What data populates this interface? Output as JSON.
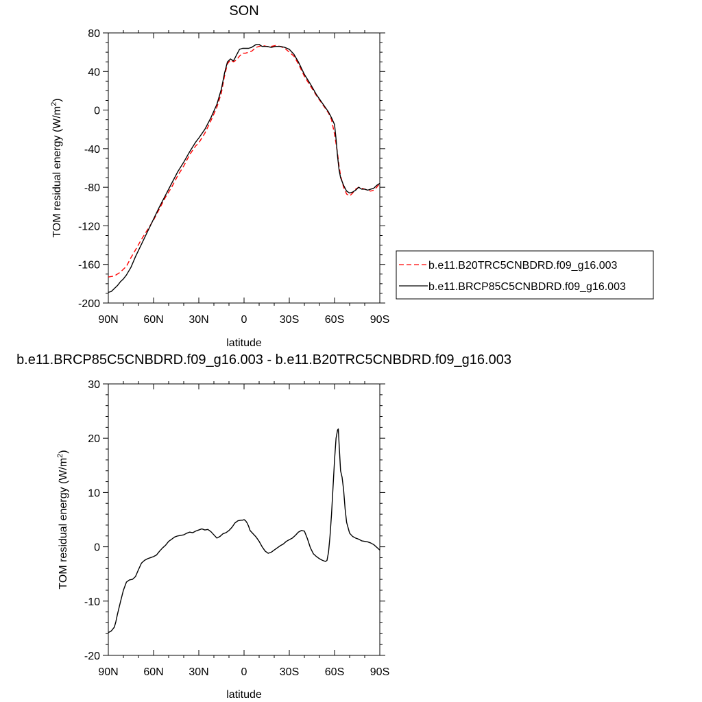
{
  "chart_data": [
    {
      "type": "line",
      "title": "SON",
      "xlabel": "latitude",
      "ylabel": "TOM residual energy (W/m",
      "ylabel_superscript": "2",
      "ylabel_suffix": ")",
      "xlim": [
        90,
        -90
      ],
      "ylim": [
        -200,
        80
      ],
      "x_ticks": [
        90,
        60,
        30,
        0,
        -30,
        -60,
        -90
      ],
      "x_tick_labels": [
        "90N",
        "60N",
        "30N",
        "0",
        "30S",
        "60S",
        "90S"
      ],
      "y_ticks": [
        80,
        40,
        0,
        -40,
        -80,
        -120,
        -160,
        -200
      ],
      "y_tick_labels": [
        "80",
        "40",
        "0",
        "-40",
        "-80",
        "-120",
        "-160",
        "-200"
      ],
      "grid": false,
      "legend_position": "right",
      "series": [
        {
          "name": "b.e11.B20TRC5CNBDRD.f09_g16.003",
          "color": "#ff0000",
          "dash": "dashed",
          "x": [
            90,
            86,
            82,
            78,
            75,
            72,
            68,
            64,
            60,
            56,
            52,
            48,
            44,
            40,
            36,
            32,
            30,
            26,
            22,
            18,
            15,
            13,
            11,
            9,
            7,
            5,
            3,
            1,
            -1,
            -3,
            -5,
            -8,
            -10,
            -12,
            -15,
            -18,
            -21,
            -24,
            -27,
            -30,
            -33,
            -36,
            -40,
            -44,
            -48,
            -52,
            -56,
            -58,
            -60,
            -62,
            -63,
            -64,
            -66,
            -68,
            -70,
            -72,
            -74,
            -76,
            -78,
            -80,
            -82,
            -84,
            -86,
            -88,
            -90
          ],
          "y": [
            -173,
            -172,
            -168,
            -162,
            -153,
            -145,
            -134,
            -124,
            -114,
            -102,
            -90,
            -80,
            -68,
            -58,
            -46,
            -37,
            -34,
            -24,
            -11,
            3,
            18,
            35,
            48,
            52,
            50,
            52,
            56,
            59,
            59,
            60,
            61,
            65,
            66,
            67,
            66,
            66,
            67,
            66,
            64,
            60,
            56,
            48,
            35,
            25,
            15,
            6,
            -3,
            -10,
            -25,
            -45,
            -58,
            -68,
            -80,
            -87,
            -89,
            -86,
            -82,
            -80,
            -81,
            -82,
            -83,
            -84,
            -83,
            -80,
            -76
          ]
        },
        {
          "name": "b.e11.BRCP85C5CNBDRD.f09_g16.003",
          "color": "#000000",
          "dash": "solid",
          "x": [
            90,
            88,
            86,
            84,
            82,
            80,
            78,
            75,
            72,
            68,
            64,
            60,
            56,
            52,
            48,
            44,
            40,
            36,
            32,
            30,
            26,
            22,
            18,
            15,
            13,
            11,
            9,
            7,
            5,
            3,
            1,
            -1,
            -3,
            -5,
            -8,
            -10,
            -12,
            -15,
            -18,
            -21,
            -24,
            -27,
            -30,
            -33,
            -36,
            -40,
            -44,
            -48,
            -52,
            -56,
            -58,
            -60,
            -61,
            -62,
            -63,
            -64,
            -66,
            -68,
            -70,
            -72,
            -74,
            -76,
            -78,
            -80,
            -82,
            -84,
            -86,
            -88,
            -90
          ],
          "y": [
            -189,
            -188,
            -185,
            -182,
            -178,
            -175,
            -171,
            -163,
            -152,
            -139,
            -126,
            -113,
            -100,
            -88,
            -76,
            -64,
            -54,
            -43,
            -33,
            -29,
            -20,
            -8,
            6,
            22,
            38,
            50,
            53,
            51,
            57,
            63,
            64,
            64,
            64,
            65,
            68,
            68,
            66,
            66,
            65,
            66,
            66,
            65,
            63,
            58,
            50,
            37,
            27,
            16,
            7,
            -2,
            -8,
            -15,
            -30,
            -48,
            -62,
            -70,
            -78,
            -84,
            -86,
            -85,
            -83,
            -80,
            -82,
            -82,
            -83,
            -82,
            -81,
            -78,
            -76
          ]
        }
      ]
    },
    {
      "type": "line",
      "title": "b.e11.BRCP85C5CNBDRD.f09_g16.003 - b.e11.B20TRC5CNBDRD.f09_g16.003",
      "xlabel": "latitude",
      "ylabel": "TOM residual energy (W/m",
      "ylabel_superscript": "2",
      "ylabel_suffix": ")",
      "xlim": [
        90,
        -90
      ],
      "ylim": [
        -20,
        30
      ],
      "x_ticks": [
        90,
        60,
        30,
        0,
        -30,
        -60,
        -90
      ],
      "x_tick_labels": [
        "90N",
        "60N",
        "30N",
        "0",
        "30S",
        "60S",
        "90S"
      ],
      "y_ticks": [
        30,
        20,
        10,
        0,
        -10,
        -20
      ],
      "y_tick_labels": [
        "30",
        "20",
        "10",
        "0",
        "-10",
        "-20"
      ],
      "grid": false,
      "series": [
        {
          "name": "",
          "color": "#000000",
          "dash": "solid",
          "x": [
            90,
            88,
            86,
            85,
            84,
            82,
            80,
            78,
            76,
            74,
            72,
            70,
            68,
            66,
            64,
            62,
            60,
            58,
            56,
            54,
            52,
            50,
            48,
            46,
            44,
            42,
            40,
            38,
            36,
            34,
            32,
            30,
            28,
            26,
            24,
            22,
            20,
            18,
            16,
            14,
            12,
            10,
            8,
            6,
            4,
            2,
            1,
            0,
            -1,
            -2,
            -3,
            -4,
            -6,
            -8,
            -10,
            -12,
            -14,
            -16,
            -18,
            -20,
            -22,
            -24,
            -26,
            -28,
            -30,
            -32,
            -34,
            -36,
            -38,
            -40,
            -42,
            -44,
            -46,
            -48,
            -50,
            -52,
            -54,
            -55,
            -56,
            -57,
            -58,
            -59,
            -60,
            -61,
            -62,
            -62.5,
            -63,
            -64,
            -65,
            -66,
            -67,
            -68,
            -70,
            -72,
            -74,
            -76,
            -78,
            -80,
            -82,
            -84,
            -86,
            -88,
            -90
          ],
          "y": [
            -15.8,
            -15.5,
            -14.8,
            -13.8,
            -12.5,
            -10.2,
            -8,
            -6.5,
            -6.1,
            -6,
            -5.5,
            -4.2,
            -3,
            -2.5,
            -2.2,
            -2,
            -1.8,
            -1.5,
            -0.8,
            -0.2,
            0.3,
            1,
            1.4,
            1.8,
            2,
            2.1,
            2.2,
            2.5,
            2.7,
            2.6,
            2.9,
            3.1,
            3.3,
            3.1,
            3.2,
            2.8,
            2.2,
            1.6,
            1.9,
            2.4,
            2.6,
            3,
            3.6,
            4.4,
            4.8,
            4.9,
            4.9,
            5,
            4.8,
            4.4,
            3.8,
            3,
            2.4,
            1.8,
            1,
            0,
            -0.8,
            -1.2,
            -1,
            -0.6,
            -0.2,
            0.2,
            0.5,
            1,
            1.3,
            1.6,
            2.1,
            2.7,
            3,
            2.9,
            1.5,
            -0.2,
            -1.3,
            -1.8,
            -2.2,
            -2.5,
            -2.7,
            -2.5,
            -1,
            2,
            6,
            11,
            16,
            20,
            21.5,
            21.7,
            19,
            14,
            12.8,
            10.5,
            7,
            4.5,
            2.5,
            1.9,
            1.6,
            1.4,
            1.1,
            1,
            0.9,
            0.7,
            0.4,
            -0.1,
            -0.6
          ]
        }
      ]
    }
  ]
}
